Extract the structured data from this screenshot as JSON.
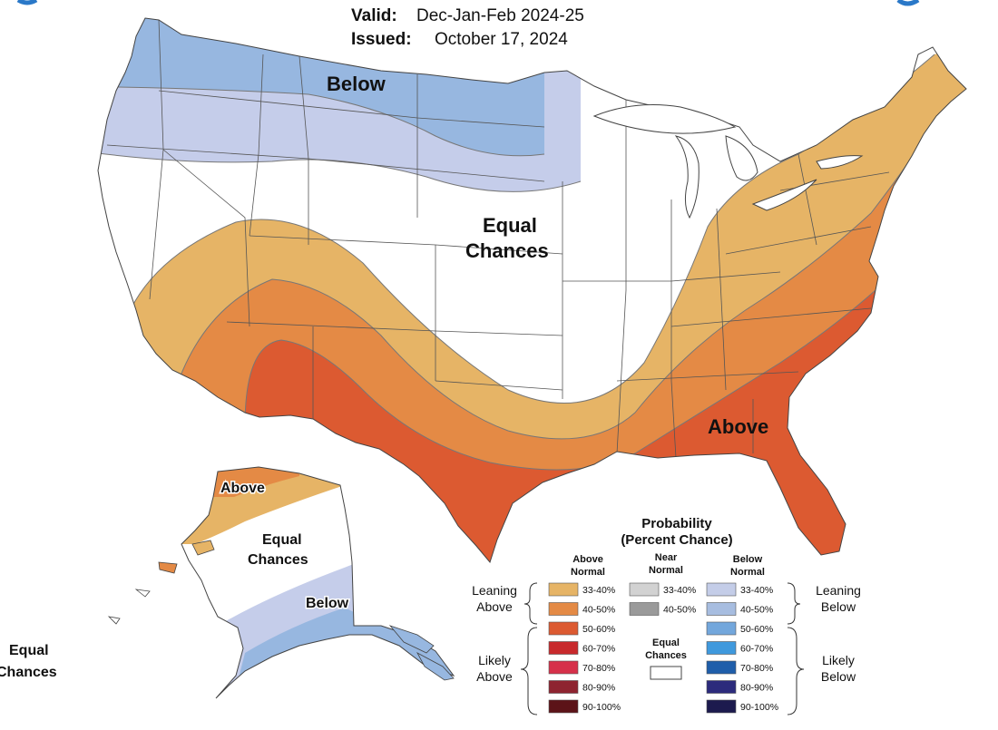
{
  "header": {
    "valid_label": "Valid:",
    "valid_value": "Dec-Jan-Feb 2024-25",
    "issued_label": "Issued:",
    "issued_value": "October 17, 2024"
  },
  "map_labels": {
    "below": "Below",
    "equal_line1": "Equal",
    "equal_line2": "Chances",
    "above": "Above",
    "alaska_above": "Above",
    "alaska_equal_line1": "Equal",
    "alaska_equal_line2": "Chances",
    "alaska_below": "Below",
    "hawaii_equal_line1": "Equal",
    "hawaii_equal_line2": "Chances"
  },
  "legend": {
    "title_line1": "Probability",
    "title_line2": "(Percent Chance)",
    "col_above_line1": "Above",
    "col_above_line2": "Normal",
    "col_near_line1": "Near",
    "col_near_line2": "Normal",
    "col_below_line1": "Below",
    "col_below_line2": "Normal",
    "leaning_above_line1": "Leaning",
    "leaning_above_line2": "Above",
    "leaning_below_line1": "Leaning",
    "leaning_below_line2": "Below",
    "likely_above_line1": "Likely",
    "likely_above_line2": "Above",
    "likely_below_line1": "Likely",
    "likely_below_line2": "Below",
    "equal_line1": "Equal",
    "equal_line2": "Chances",
    "above_bins": [
      {
        "label": "33-40%",
        "color": "#e6b466"
      },
      {
        "label": "40-50%",
        "color": "#e48a45"
      },
      {
        "label": "50-60%",
        "color": "#dc5a31"
      },
      {
        "label": "60-70%",
        "color": "#c8292c"
      },
      {
        "label": "70-80%",
        "color": "#d6304a"
      },
      {
        "label": "80-90%",
        "color": "#8e2430"
      },
      {
        "label": "90-100%",
        "color": "#5c1318"
      }
    ],
    "near_bins": [
      {
        "label": "33-40%",
        "color": "#d2d2d2"
      },
      {
        "label": "40-50%",
        "color": "#9a9a9a"
      }
    ],
    "below_bins": [
      {
        "label": "33-40%",
        "color": "#c4cde8"
      },
      {
        "label": "40-50%",
        "color": "#a7bde0"
      },
      {
        "label": "50-60%",
        "color": "#73a7dc"
      },
      {
        "label": "60-70%",
        "color": "#3f99dd"
      },
      {
        "label": "70-80%",
        "color": "#1f5eaa"
      },
      {
        "label": "80-90%",
        "color": "#2c2b7c"
      },
      {
        "label": "90-100%",
        "color": "#1c1a4e"
      }
    ]
  },
  "colors": {
    "below_40_50": "#97b7e0",
    "below_33_40": "#c5cdea",
    "above_33_40": "#e6b466",
    "above_40_50": "#e48a45",
    "above_50_60": "#dc5a31",
    "equal": "#ffffff"
  }
}
